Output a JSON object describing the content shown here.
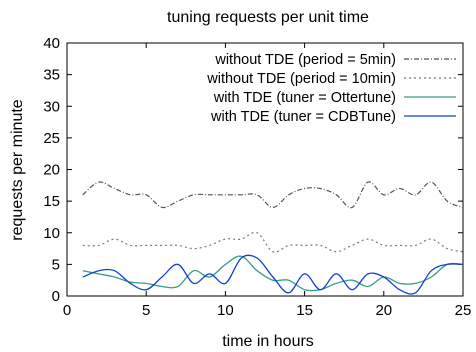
{
  "chart_data": {
    "type": "line",
    "title": "tuning requests per unit time",
    "xlabel": "time in hours",
    "ylabel": "requests per minute",
    "xlim": [
      0,
      25
    ],
    "ylim": [
      0,
      40
    ],
    "xticks": [
      0,
      5,
      10,
      15,
      20,
      25
    ],
    "yticks": [
      0,
      5,
      10,
      15,
      20,
      25,
      30,
      35,
      40
    ],
    "grid": false,
    "legend_position": "top-right",
    "series": [
      {
        "name": "without TDE (period = 5min)",
        "color": "#555555",
        "dash": "dash-dot",
        "x": [
          1,
          2,
          3,
          4,
          5,
          6,
          7,
          8,
          9,
          10,
          11,
          12,
          13,
          14,
          15,
          16,
          17,
          18,
          19,
          20,
          21,
          22,
          23,
          24,
          25
        ],
        "y": [
          16,
          18,
          17,
          16,
          16,
          14,
          15,
          16,
          16,
          16,
          16,
          16,
          14,
          16,
          17,
          17,
          16,
          14,
          18,
          16,
          17,
          16,
          18,
          15,
          14
        ]
      },
      {
        "name": "without TDE (period = 10min)",
        "color": "#777777",
        "dash": "dotted",
        "x": [
          1,
          2,
          3,
          4,
          5,
          6,
          7,
          8,
          9,
          10,
          11,
          12,
          13,
          14,
          15,
          16,
          17,
          18,
          19,
          20,
          21,
          22,
          23,
          24,
          25
        ],
        "y": [
          8,
          8,
          9,
          8,
          8,
          8,
          8,
          7.5,
          8,
          9,
          9,
          10,
          7,
          8,
          8,
          8,
          7,
          8,
          9,
          8,
          8,
          8,
          9,
          7.5,
          7
        ]
      },
      {
        "name": "with TDE (tuner = Ottertune)",
        "color": "#3a9a8c",
        "dash": "solid",
        "x": [
          1,
          2,
          3,
          4,
          5,
          6,
          7,
          8,
          9,
          10,
          11,
          12,
          13,
          14,
          15,
          16,
          17,
          18,
          19,
          20,
          21,
          22,
          23,
          24,
          25
        ],
        "y": [
          4,
          3.5,
          3,
          2.2,
          2,
          1.5,
          1.5,
          4,
          3,
          5,
          6.3,
          4,
          2.5,
          2.5,
          1,
          1,
          2,
          2.5,
          1.5,
          3,
          2,
          2,
          3,
          5,
          5
        ]
      },
      {
        "name": "with TDE (tuner = CDBTune)",
        "color": "#1240d0",
        "dash": "solid",
        "x": [
          1,
          2,
          3,
          4,
          5,
          6,
          7,
          8,
          9,
          10,
          11,
          12,
          13,
          14,
          15,
          16,
          17,
          18,
          19,
          20,
          21,
          22,
          23,
          24,
          25
        ],
        "y": [
          3,
          4,
          4,
          2,
          1,
          3,
          5,
          2,
          3.5,
          2,
          6,
          6,
          3,
          0.5,
          3.5,
          1,
          3.5,
          1,
          3.5,
          3,
          1,
          0.5,
          4,
          5,
          5
        ]
      }
    ]
  }
}
